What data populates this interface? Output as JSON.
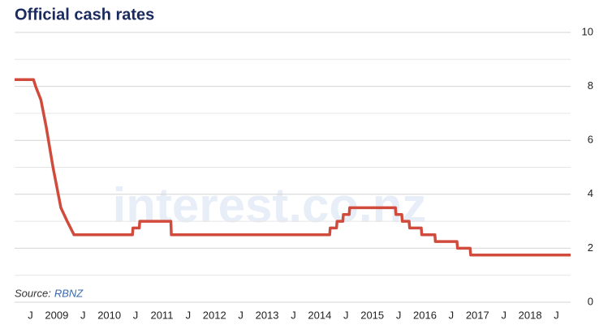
{
  "chart_data": {
    "type": "line",
    "title": "Official cash rates",
    "source_label": "Source:",
    "source": "RBNZ",
    "watermark": "interest.co.nz",
    "x": [
      2008.2,
      2008.56,
      2008.6,
      2008.7,
      2008.8,
      2008.93,
      2009.08,
      2009.2,
      2009.33,
      2010.44,
      2010.45,
      2010.57,
      2010.58,
      2011.17,
      2011.18,
      2014.19,
      2014.2,
      2014.32,
      2014.33,
      2014.44,
      2014.45,
      2014.56,
      2014.57,
      2015.44,
      2015.45,
      2015.56,
      2015.57,
      2015.7,
      2015.71,
      2015.93,
      2015.94,
      2016.19,
      2016.2,
      2016.61,
      2016.62,
      2016.86,
      2016.87,
      2018.77
    ],
    "values": [
      8.25,
      8.25,
      8.0,
      7.5,
      6.5,
      5.0,
      3.5,
      3.0,
      2.5,
      2.5,
      2.75,
      2.75,
      3.0,
      3.0,
      2.5,
      2.5,
      2.75,
      2.75,
      3.0,
      3.0,
      3.25,
      3.25,
      3.5,
      3.5,
      3.25,
      3.25,
      3.0,
      3.0,
      2.75,
      2.75,
      2.5,
      2.5,
      2.25,
      2.25,
      2.0,
      2.0,
      1.75,
      1.75
    ],
    "color": "#d14b3d",
    "xlim": [
      2008.2,
      2018.77
    ],
    "xticks": [
      {
        "value": 2008.5,
        "label": "J"
      },
      2009,
      {
        "value": 2009.5,
        "label": "J"
      },
      2010,
      {
        "value": 2010.5,
        "label": "J"
      },
      2011,
      {
        "value": 2011.5,
        "label": "J"
      },
      2012,
      {
        "value": 2012.5,
        "label": "J"
      },
      2013,
      {
        "value": 2013.5,
        "label": "J"
      },
      2014,
      {
        "value": 2014.5,
        "label": "J"
      },
      2015,
      {
        "value": 2015.5,
        "label": "J"
      },
      2016,
      {
        "value": 2016.5,
        "label": "J"
      },
      2017,
      {
        "value": 2017.5,
        "label": "J"
      },
      2018,
      {
        "value": 2018.5,
        "label": "J"
      }
    ],
    "ylim": [
      0,
      10
    ],
    "yticks": [
      0,
      2,
      4,
      6,
      8,
      10
    ],
    "minor_yticks": [
      1,
      3,
      5,
      7,
      9
    ],
    "grid": true,
    "y_axis_side": "right"
  }
}
